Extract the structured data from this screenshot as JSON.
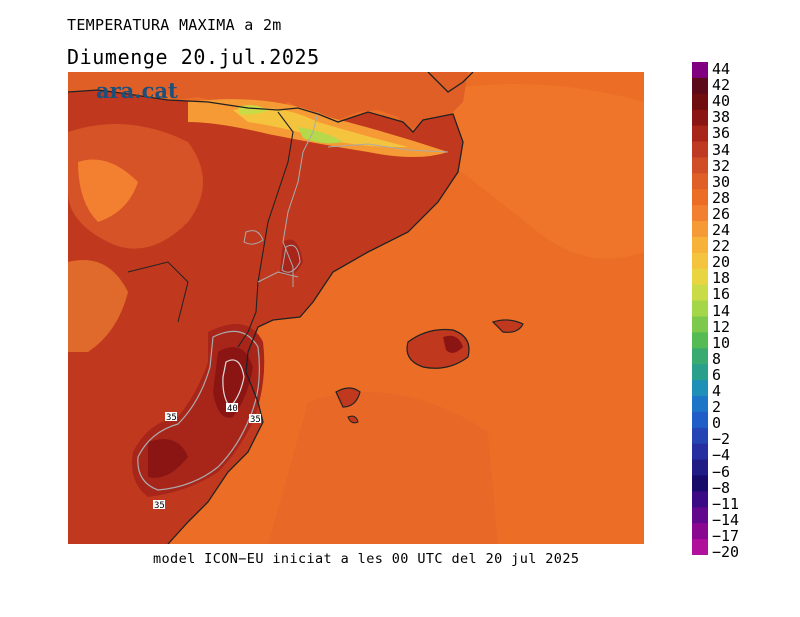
{
  "title": "TEMPERATURA MAXIMA a 2m",
  "subtitle": "Diumenge  20.jul.2025",
  "logo": "ara.cat",
  "footer": "model ICON−EU iniciat a les 00 UTC del 20 jul 2025",
  "legend": {
    "labels": [
      "44",
      "42",
      "40",
      "38",
      "36",
      "34",
      "32",
      "30",
      "28",
      "26",
      "24",
      "22",
      "20",
      "18",
      "16",
      "14",
      "12",
      "10",
      "8",
      "6",
      "4",
      "2",
      "0",
      "−2",
      "−4",
      "−6",
      "−8",
      "−11",
      "−14",
      "−17",
      "−20"
    ],
    "colors": [
      "#800080",
      "#5a0a18",
      "#6e0e0e",
      "#8a1512",
      "#a8251a",
      "#bf3a22",
      "#d04d27",
      "#df5f27",
      "#ec6e26",
      "#f28030",
      "#f59a35",
      "#f7b23a",
      "#f5c43e",
      "#e8d53f",
      "#c9dc48",
      "#a4d64a",
      "#7cc94c",
      "#55bb55",
      "#3aab70",
      "#2aa08c",
      "#1e8fb6",
      "#1d75c8",
      "#1f5ec8",
      "#2545b5",
      "#262fa0",
      "#201c86",
      "#170c6a",
      "#3d0a86",
      "#62088c",
      "#8a0890",
      "#b0109a"
    ]
  },
  "contour_labels": [
    "35",
    "40",
    "35",
    "35"
  ],
  "colors": {
    "sea": "#ec6e26",
    "land_hot": "#c0391f",
    "land_warm": "#d55326",
    "extreme": "#8a1512",
    "mountains": "#f5c43e",
    "peaks": "#b6d84b",
    "border": "#222222"
  }
}
